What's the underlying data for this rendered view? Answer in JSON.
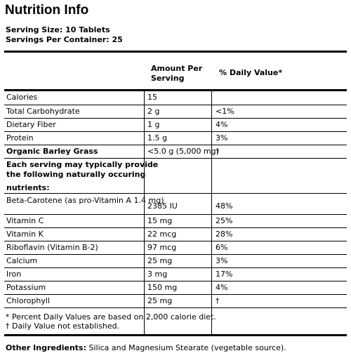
{
  "title": "Nutrition Info",
  "serving_size": "Serving Size: 10 Tablets",
  "servings_per_container": "Servings Per Container: 25",
  "header": {
    "amount_line1": "Amount Per",
    "amount_line2": "Serving",
    "daily_value": "% Daily Value*"
  },
  "rows": [
    {
      "name": "Calories",
      "amount": "15",
      "dv": ""
    },
    {
      "name": "Total Carbohydrate",
      "amount": "2 g",
      "dv": "<1%"
    },
    {
      "name": "Dietary Fiber",
      "amount": "1 g",
      "dv": "4%"
    },
    {
      "name": "Protein",
      "amount": "1.5 g",
      "dv": "3%"
    },
    {
      "name": "Organic Barley Grass",
      "amount": "<5.0 g (5,000 mg)",
      "dv": "†"
    },
    {
      "name": "Each serving may typically provide",
      "amount": "",
      "dv": ""
    },
    {
      "name": "the following naturally occuring",
      "amount": "",
      "dv": ""
    },
    {
      "name": "nutrients:",
      "amount": "",
      "dv": ""
    },
    {
      "name": "Beta-Carotene (as pro-Vitamin A 1.4 mg)",
      "amount": "2385 IU",
      "dv": "48%"
    },
    {
      "name": "Vitamin C",
      "amount": "15 mg",
      "dv": "25%"
    },
    {
      "name": "Vitamin K",
      "amount": "22 mcg",
      "dv": "28%"
    },
    {
      "name": "Riboflavin (Vitamin B-2)",
      "amount": "97 mcg",
      "dv": "6%"
    },
    {
      "name": "Calcium",
      "amount": "25 mg",
      "dv": "3%"
    },
    {
      "name": "Iron",
      "amount": "3 mg",
      "dv": "17%"
    },
    {
      "name": "Potassium",
      "amount": "150 mg",
      "dv": "4%"
    },
    {
      "name": "Chlorophyll",
      "amount": "25 mg",
      "dv": "†"
    }
  ],
  "footnotes": {
    "percent": "* Percent Daily Values are based on 2,000 calorie diet.",
    "dagger": "† Daily Value not established."
  },
  "other_ingredients": {
    "label": "Other Ingredients:",
    "text": " Silica and Magnesium Stearate (vegetable source)."
  }
}
